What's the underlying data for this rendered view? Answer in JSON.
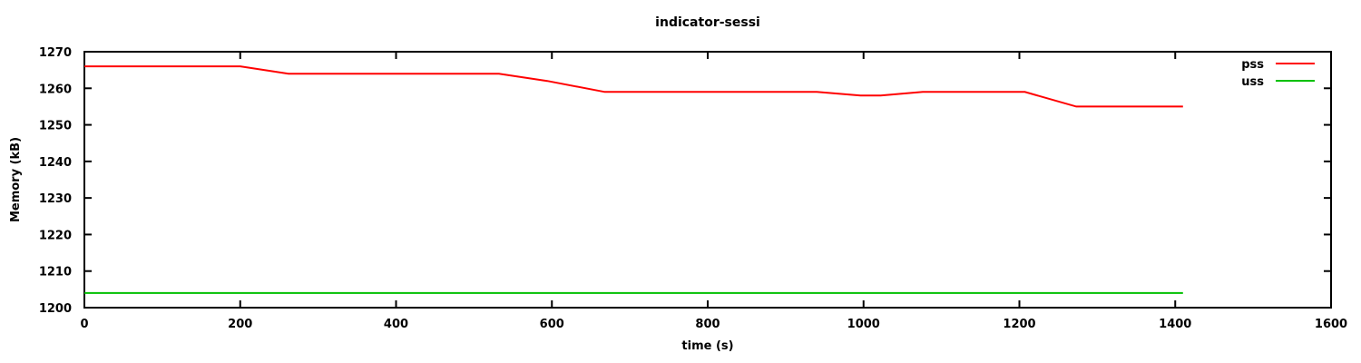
{
  "chart_data": {
    "type": "line",
    "title": "indicator-sessi",
    "xlabel": "time (s)",
    "ylabel": "Memory (kB)",
    "xlim": [
      0,
      1600
    ],
    "ylim": [
      1200,
      1270
    ],
    "xticks": [
      0,
      200,
      400,
      600,
      800,
      1000,
      1200,
      1400,
      1600
    ],
    "yticks": [
      1200,
      1210,
      1220,
      1230,
      1240,
      1250,
      1260,
      1270
    ],
    "grid": false,
    "legend_position": "top-right-inside",
    "axis_color": "#000000",
    "background_color": "#ffffff",
    "series": [
      {
        "name": "pss",
        "color": "#ff0000",
        "points": [
          [
            0,
            1266
          ],
          [
            200,
            1266
          ],
          [
            262,
            1264
          ],
          [
            532,
            1264
          ],
          [
            594,
            1262
          ],
          [
            668,
            1259
          ],
          [
            940,
            1259
          ],
          [
            996,
            1258
          ],
          [
            1022,
            1258
          ],
          [
            1076,
            1259
          ],
          [
            1207,
            1259
          ],
          [
            1273,
            1255
          ],
          [
            1410,
            1255
          ]
        ]
      },
      {
        "name": "uss",
        "color": "#00c000",
        "points": [
          [
            0,
            1204
          ],
          [
            1410,
            1204
          ]
        ]
      }
    ]
  }
}
